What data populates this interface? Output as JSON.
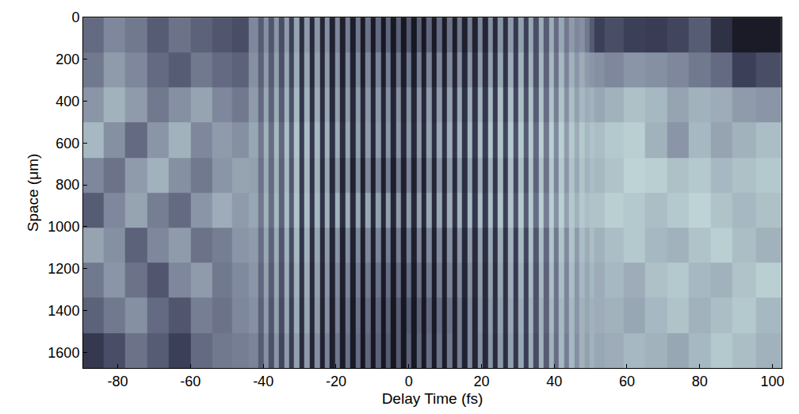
{
  "chart_data": {
    "type": "heatmap",
    "x_label": "Delay Time (fs)",
    "y_label": "Space (μm)",
    "xlim": [
      -89.5,
      102.5
    ],
    "ylim": [
      1675,
      0
    ],
    "xticks": [
      -80,
      -60,
      -40,
      -20,
      0,
      20,
      40,
      60,
      80,
      100
    ],
    "yticks": [
      0,
      200,
      400,
      600,
      800,
      1000,
      1200,
      1400,
      1600
    ],
    "grid": false,
    "zlim": [
      0,
      100
    ],
    "x": [
      -87,
      -81,
      -75,
      -69,
      -63,
      -57,
      -51,
      -46,
      -42,
      -40.6,
      -39.2,
      -37.8,
      -36.4,
      -35,
      -33.6,
      -32.2,
      -30.8,
      -29.4,
      -28,
      -26.6,
      -25.2,
      -23.8,
      -22.4,
      -21,
      -19.6,
      -18.2,
      -16.8,
      -15.4,
      -14,
      -12.6,
      -11.2,
      -9.8,
      -8.4,
      -7,
      -5.6,
      -4.2,
      -2.8,
      -1.4,
      0,
      1.4,
      2.8,
      4.2,
      5.6,
      7,
      8.4,
      9.8,
      11.2,
      12.6,
      14,
      15.4,
      16.8,
      18.2,
      19.6,
      21,
      22.4,
      23.8,
      25.2,
      26.6,
      28,
      29.4,
      30.8,
      32.2,
      33.6,
      35,
      36.4,
      37.8,
      39.2,
      40.6,
      42,
      43.4,
      44.8,
      46.2,
      47.6,
      49,
      50.4,
      51.8,
      56,
      62,
      68,
      74,
      80,
      86,
      92,
      99
    ],
    "y": [
      84,
      251,
      419,
      586,
      754,
      921,
      1089,
      1256,
      1424,
      1591
    ],
    "z": [
      [
        45,
        55,
        50,
        40,
        48,
        42,
        38,
        35,
        55,
        40,
        58,
        38,
        60,
        35,
        62,
        30,
        65,
        18,
        62,
        15,
        60,
        12,
        58,
        10,
        55,
        8,
        52,
        6,
        50,
        5,
        48,
        4,
        45,
        3,
        44,
        3,
        42,
        2,
        40,
        2,
        42,
        3,
        44,
        4,
        46,
        5,
        48,
        6,
        50,
        8,
        52,
        10,
        55,
        12,
        58,
        15,
        60,
        18,
        62,
        25,
        64,
        30,
        66,
        35,
        68,
        40,
        68,
        45,
        66,
        50,
        62,
        55,
        58,
        50,
        40,
        30,
        35,
        30,
        28,
        32,
        40,
        20,
        5,
        5
      ],
      [
        50,
        62,
        55,
        45,
        40,
        50,
        45,
        42,
        58,
        42,
        62,
        40,
        64,
        36,
        66,
        32,
        68,
        20,
        66,
        16,
        64,
        14,
        62,
        12,
        60,
        10,
        58,
        10,
        56,
        8,
        55,
        8,
        54,
        7,
        52,
        7,
        50,
        6,
        50,
        7,
        52,
        8,
        54,
        9,
        55,
        10,
        56,
        12,
        58,
        14,
        60,
        16,
        62,
        18,
        64,
        20,
        66,
        22,
        68,
        28,
        70,
        32,
        70,
        36,
        72,
        42,
        72,
        48,
        72,
        54,
        70,
        60,
        68,
        62,
        60,
        58,
        55,
        60,
        58,
        55,
        50,
        45,
        30,
        35
      ],
      [
        60,
        70,
        62,
        50,
        58,
        65,
        55,
        50,
        62,
        45,
        66,
        42,
        68,
        40,
        70,
        36,
        72,
        24,
        70,
        20,
        68,
        18,
        66,
        16,
        64,
        15,
        62,
        14,
        62,
        14,
        60,
        13,
        60,
        13,
        58,
        12,
        58,
        12,
        58,
        13,
        60,
        14,
        62,
        15,
        62,
        16,
        64,
        18,
        66,
        20,
        68,
        22,
        70,
        24,
        72,
        26,
        74,
        28,
        74,
        32,
        74,
        36,
        75,
        40,
        76,
        46,
        76,
        52,
        76,
        58,
        74,
        64,
        72,
        68,
        70,
        66,
        70,
        75,
        72,
        65,
        70,
        68,
        62,
        60
      ],
      [
        72,
        58,
        45,
        60,
        70,
        55,
        62,
        58,
        66,
        50,
        70,
        46,
        72,
        44,
        74,
        40,
        76,
        28,
        74,
        25,
        72,
        22,
        70,
        20,
        68,
        18,
        66,
        16,
        64,
        15,
        62,
        14,
        62,
        14,
        60,
        13,
        60,
        14,
        60,
        15,
        62,
        16,
        64,
        18,
        66,
        20,
        68,
        22,
        70,
        24,
        72,
        26,
        74,
        28,
        76,
        30,
        76,
        32,
        78,
        36,
        78,
        40,
        78,
        44,
        80,
        50,
        80,
        56,
        80,
        62,
        78,
        68,
        78,
        72,
        76,
        74,
        78,
        80,
        70,
        60,
        72,
        65,
        70,
        74
      ],
      [
        55,
        48,
        62,
        70,
        58,
        50,
        60,
        65,
        64,
        48,
        68,
        45,
        70,
        42,
        72,
        38,
        74,
        26,
        72,
        22,
        70,
        18,
        66,
        15,
        62,
        12,
        60,
        10,
        58,
        9,
        55,
        8,
        54,
        8,
        52,
        7,
        52,
        8,
        54,
        9,
        56,
        10,
        58,
        12,
        60,
        14,
        62,
        16,
        64,
        18,
        66,
        20,
        68,
        22,
        70,
        24,
        72,
        26,
        74,
        32,
        74,
        36,
        76,
        42,
        76,
        48,
        78,
        54,
        78,
        60,
        76,
        66,
        76,
        70,
        74,
        72,
        76,
        82,
        80,
        75,
        78,
        72,
        75,
        78
      ],
      [
        40,
        55,
        65,
        52,
        45,
        60,
        68,
        62,
        66,
        50,
        70,
        46,
        72,
        42,
        74,
        40,
        76,
        28,
        74,
        24,
        72,
        22,
        70,
        20,
        70,
        18,
        68,
        16,
        66,
        15,
        66,
        14,
        64,
        14,
        64,
        13,
        62,
        13,
        62,
        14,
        64,
        15,
        66,
        16,
        66,
        18,
        68,
        20,
        70,
        22,
        72,
        24,
        74,
        26,
        74,
        28,
        76,
        30,
        76,
        36,
        78,
        40,
        78,
        46,
        80,
        52,
        80,
        58,
        80,
        64,
        78,
        70,
        78,
        74,
        76,
        76,
        80,
        78,
        74,
        78,
        82,
        76,
        72,
        75
      ],
      [
        65,
        58,
        42,
        55,
        62,
        48,
        52,
        60,
        62,
        46,
        66,
        42,
        68,
        38,
        70,
        34,
        72,
        22,
        70,
        18,
        66,
        15,
        62,
        12,
        60,
        10,
        58,
        9,
        56,
        8,
        55,
        8,
        54,
        7,
        52,
        7,
        52,
        7,
        52,
        8,
        54,
        8,
        55,
        9,
        56,
        10,
        58,
        12,
        60,
        14,
        62,
        16,
        64,
        18,
        66,
        20,
        68,
        22,
        70,
        28,
        72,
        32,
        74,
        38,
        74,
        44,
        76,
        50,
        76,
        56,
        76,
        62,
        74,
        68,
        74,
        70,
        74,
        78,
        72,
        70,
        76,
        80,
        74,
        70
      ],
      [
        50,
        60,
        48,
        38,
        55,
        62,
        50,
        56,
        60,
        44,
        64,
        40,
        66,
        36,
        68,
        32,
        70,
        20,
        68,
        16,
        64,
        13,
        60,
        10,
        56,
        8,
        54,
        6,
        52,
        5,
        50,
        5,
        48,
        4,
        46,
        4,
        46,
        4,
        46,
        5,
        48,
        5,
        50,
        6,
        52,
        8,
        54,
        10,
        56,
        12,
        58,
        14,
        62,
        16,
        64,
        18,
        66,
        20,
        68,
        26,
        70,
        30,
        72,
        36,
        72,
        42,
        74,
        48,
        74,
        54,
        74,
        60,
        72,
        66,
        72,
        68,
        72,
        68,
        75,
        78,
        72,
        70,
        76,
        80
      ],
      [
        42,
        50,
        58,
        45,
        38,
        52,
        48,
        55,
        58,
        42,
        62,
        38,
        64,
        34,
        66,
        30,
        68,
        18,
        66,
        14,
        62,
        11,
        58,
        8,
        54,
        6,
        50,
        4,
        48,
        3,
        46,
        3,
        44,
        2,
        42,
        2,
        40,
        2,
        40,
        3,
        42,
        3,
        44,
        4,
        46,
        6,
        48,
        8,
        52,
        10,
        56,
        12,
        60,
        15,
        62,
        18,
        64,
        20,
        66,
        26,
        68,
        30,
        70,
        36,
        70,
        42,
        72,
        48,
        72,
        54,
        72,
        60,
        70,
        66,
        70,
        68,
        70,
        66,
        72,
        76,
        70,
        74,
        78,
        72
      ],
      [
        25,
        35,
        48,
        40,
        30,
        45,
        50,
        52,
        54,
        40,
        58,
        36,
        60,
        32,
        62,
        28,
        64,
        16,
        62,
        12,
        58,
        10,
        54,
        8,
        50,
        6,
        48,
        4,
        46,
        3,
        44,
        3,
        42,
        2,
        40,
        2,
        40,
        2,
        42,
        3,
        44,
        4,
        46,
        5,
        48,
        6,
        50,
        8,
        52,
        10,
        56,
        12,
        58,
        14,
        60,
        16,
        62,
        18,
        64,
        24,
        66,
        28,
        68,
        34,
        70,
        40,
        70,
        46,
        72,
        52,
        72,
        58,
        70,
        64,
        70,
        66,
        68,
        72,
        70,
        66,
        72,
        78,
        74,
        70
      ]
    ]
  }
}
